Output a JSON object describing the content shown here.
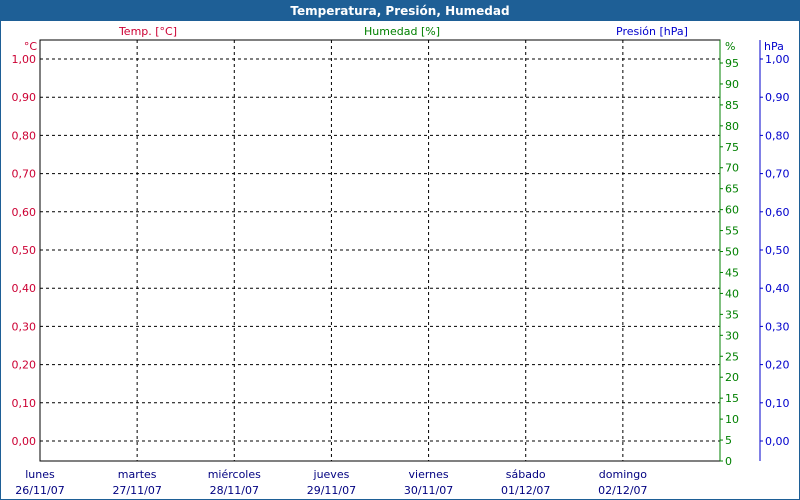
{
  "window": {
    "title": "Temperatura, Presión, Humedad"
  },
  "chart_data": {
    "type": "line",
    "title": "Temperatura, Presión, Humedad",
    "grid": true,
    "categories": [
      {
        "day": "lunes",
        "date": "26/11/07"
      },
      {
        "day": "martes",
        "date": "27/11/07"
      },
      {
        "day": "miércoles",
        "date": "28/11/07"
      },
      {
        "day": "jueves",
        "date": "29/11/07"
      },
      {
        "day": "viernes",
        "date": "30/11/07"
      },
      {
        "day": "sábado",
        "date": "01/12/07"
      },
      {
        "day": "domingo",
        "date": "02/12/07"
      }
    ],
    "axes": {
      "temperature": {
        "label": "Temp. [°C]",
        "unit": "°C",
        "color": "#cc0033",
        "position": "left",
        "ylim": [
          0,
          1
        ],
        "ticks": [
          "0,00",
          "0,10",
          "0,20",
          "0,30",
          "0,40",
          "0,50",
          "0,60",
          "0,70",
          "0,80",
          "0,90",
          "1,00"
        ]
      },
      "humidity": {
        "label": "Humedad [%]",
        "unit": "%",
        "color": "#008000",
        "position": "right",
        "ylim": [
          0,
          95
        ],
        "ticks": [
          "0",
          "5",
          "10",
          "15",
          "20",
          "25",
          "30",
          "35",
          "40",
          "45",
          "50",
          "55",
          "60",
          "65",
          "70",
          "75",
          "80",
          "85",
          "90",
          "95"
        ]
      },
      "pressure": {
        "label": "Presión [hPa]",
        "unit": "hPa",
        "color": "#0000cc",
        "position": "right-outer",
        "ylim": [
          0,
          1
        ],
        "ticks": [
          "0,00",
          "0,10",
          "0,20",
          "0,30",
          "0,40",
          "0,50",
          "0,60",
          "0,70",
          "0,80",
          "0,90",
          "1,00"
        ]
      }
    },
    "series": []
  }
}
